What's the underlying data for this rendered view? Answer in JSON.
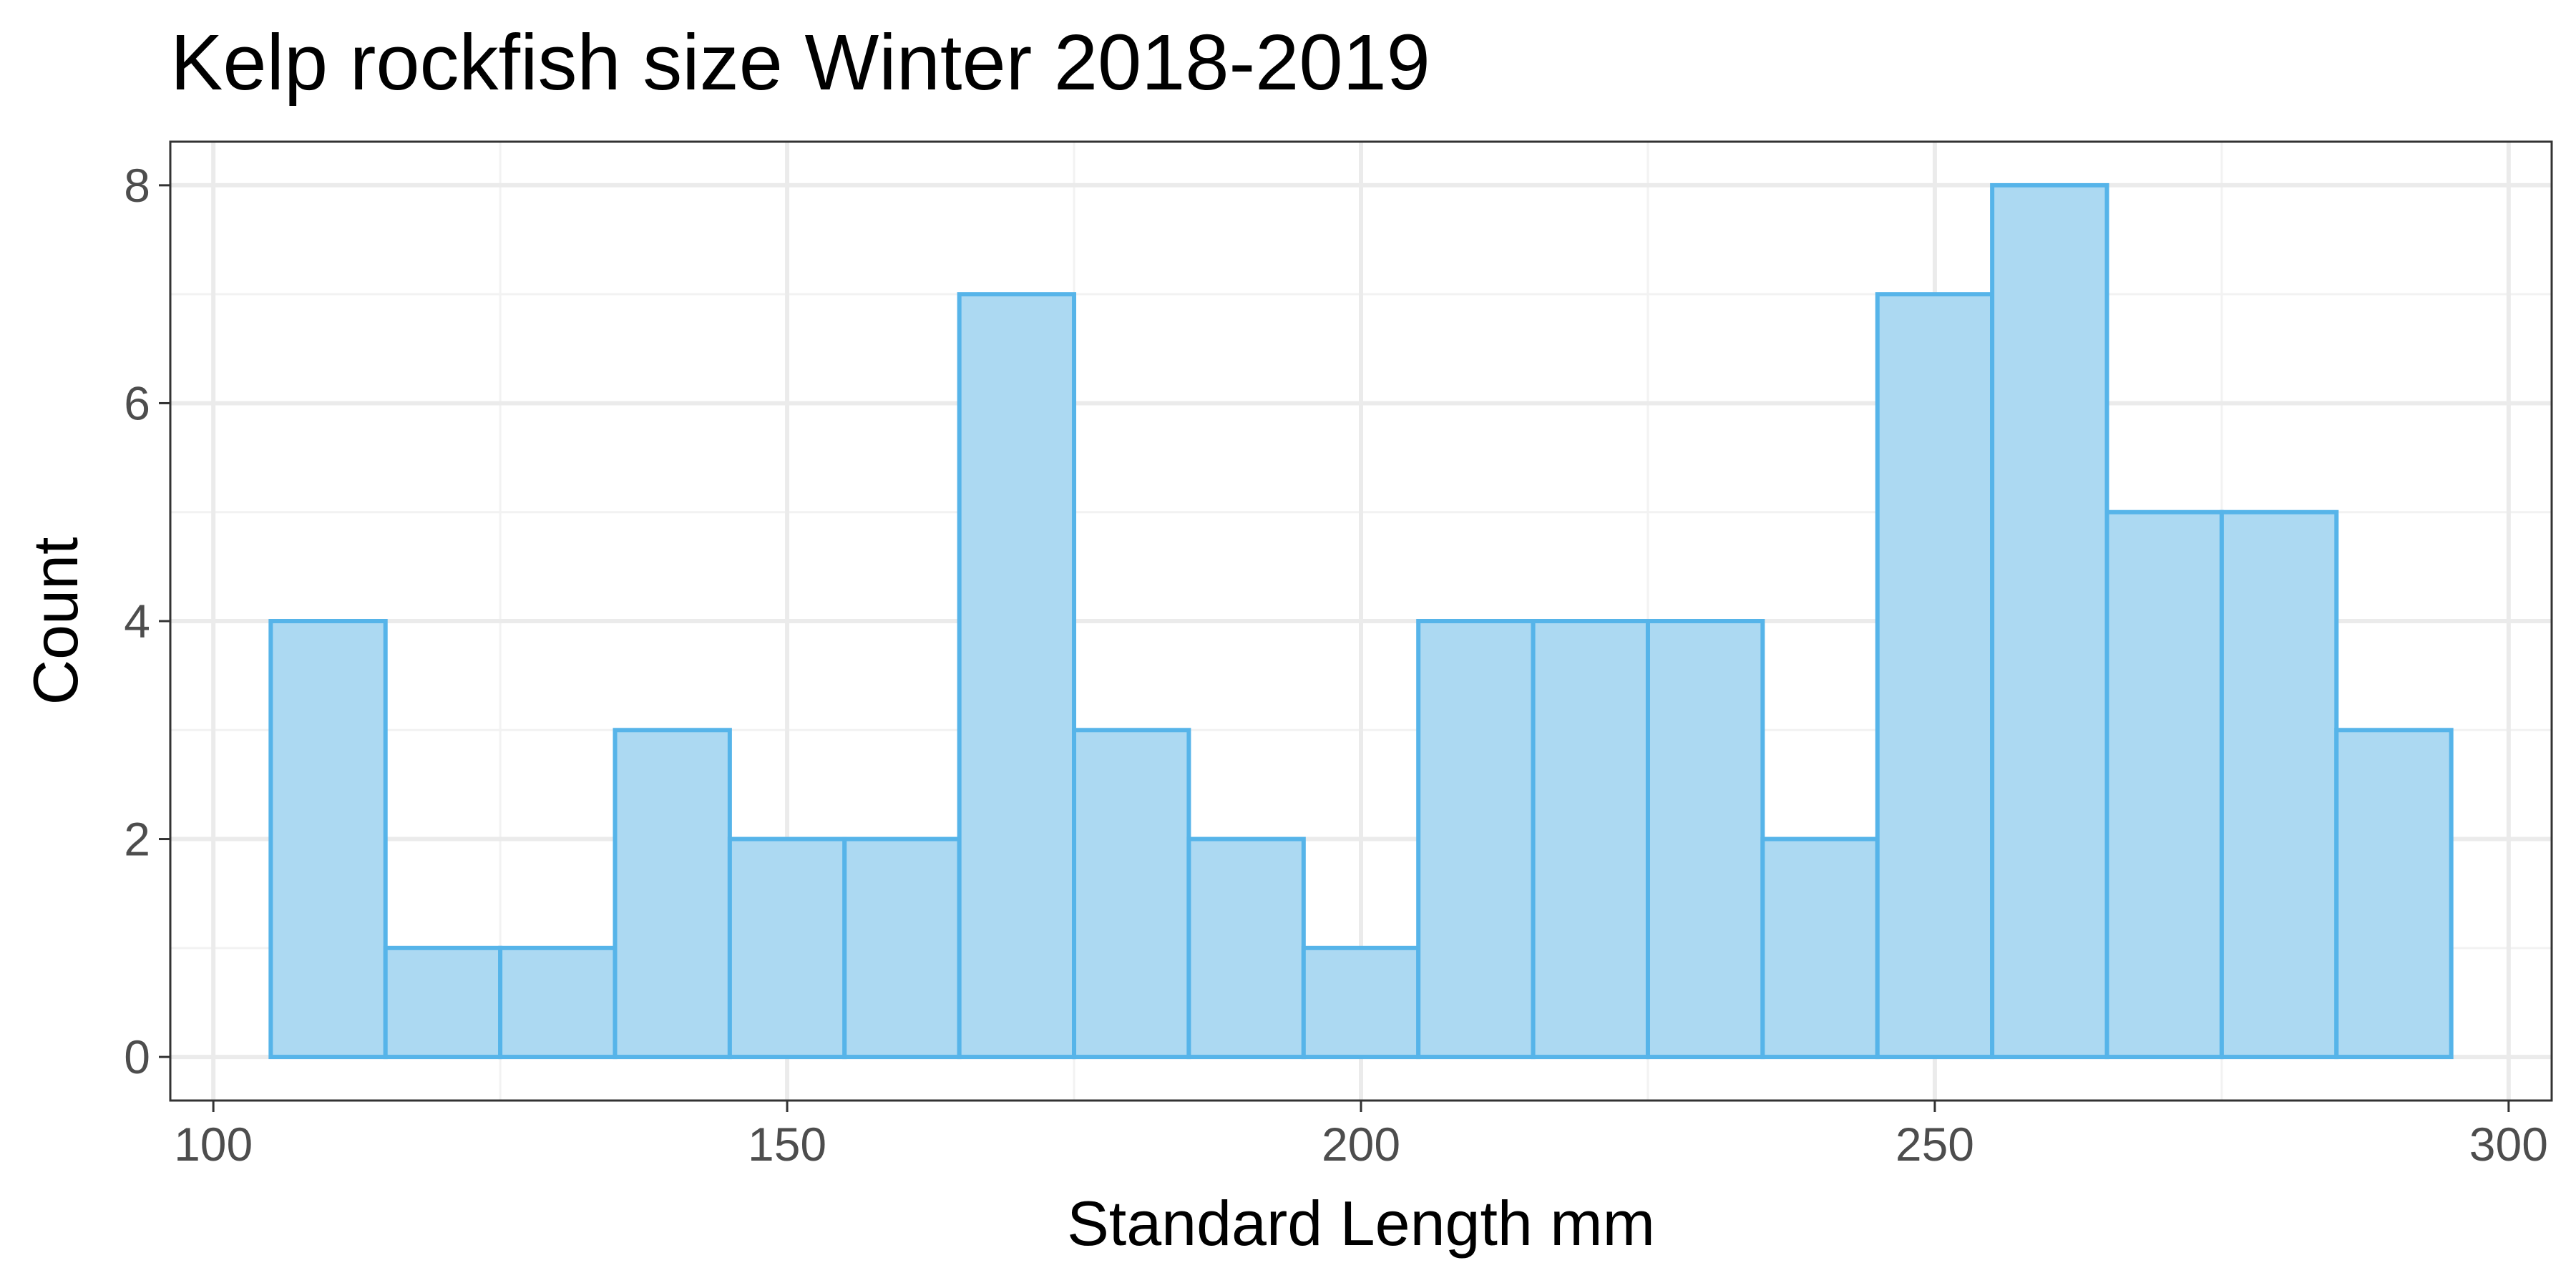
{
  "chart_data": {
    "type": "bar",
    "title": "Kelp rockfish size Winter 2018-2019",
    "xlabel": "Standard Length mm",
    "ylabel": "Count",
    "bin_width": 10,
    "bins": [
      {
        "x0": 105,
        "x1": 115,
        "count": 4
      },
      {
        "x0": 115,
        "x1": 125,
        "count": 1
      },
      {
        "x0": 125,
        "x1": 135,
        "count": 1
      },
      {
        "x0": 135,
        "x1": 145,
        "count": 3
      },
      {
        "x0": 145,
        "x1": 155,
        "count": 2
      },
      {
        "x0": 155,
        "x1": 165,
        "count": 2
      },
      {
        "x0": 165,
        "x1": 175,
        "count": 7
      },
      {
        "x0": 175,
        "x1": 185,
        "count": 3
      },
      {
        "x0": 185,
        "x1": 195,
        "count": 2
      },
      {
        "x0": 195,
        "x1": 205,
        "count": 1
      },
      {
        "x0": 205,
        "x1": 215,
        "count": 4
      },
      {
        "x0": 215,
        "x1": 225,
        "count": 4
      },
      {
        "x0": 225,
        "x1": 235,
        "count": 4
      },
      {
        "x0": 235,
        "x1": 245,
        "count": 2
      },
      {
        "x0": 245,
        "x1": 255,
        "count": 7
      },
      {
        "x0": 255,
        "x1": 265,
        "count": 8
      },
      {
        "x0": 265,
        "x1": 275,
        "count": 5
      },
      {
        "x0": 275,
        "x1": 285,
        "count": 5
      },
      {
        "x0": 285,
        "x1": 295,
        "count": 3
      }
    ],
    "xlim": [
      96.25,
      303.75
    ],
    "ylim": [
      -0.4,
      8.4
    ],
    "x_ticks": [
      100,
      150,
      200,
      250,
      300
    ],
    "x_tick_labels": [
      "100",
      "150",
      "200",
      "250",
      "300"
    ],
    "y_ticks": [
      0,
      2,
      4,
      6,
      8
    ],
    "y_tick_labels": [
      "0",
      "2",
      "4",
      "6",
      "8"
    ],
    "grid": true,
    "legend": "none",
    "colors": {
      "bar_fill": "#acd9f2",
      "bar_stroke": "#56b4e9",
      "grid_major": "#ebebeb",
      "grid_minor": "#f2f2f2",
      "panel_border": "#333333",
      "tick_text": "#4d4d4d"
    }
  }
}
